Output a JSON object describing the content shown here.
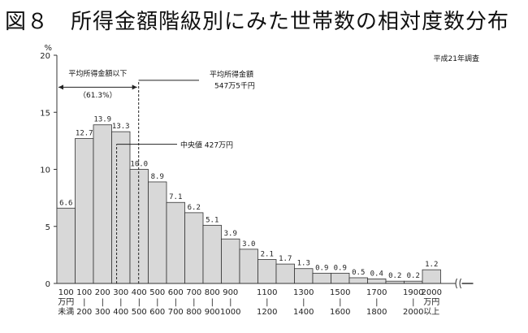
{
  "title": "図８　所得金額階級別にみた世帯数の相対度数分布",
  "chart_data": {
    "type": "bar",
    "ylabel": "%",
    "ylim": [
      0,
      20
    ],
    "yticks": [
      0,
      5,
      10,
      15,
      20
    ],
    "note": "平成21年調査",
    "categories": [
      [
        "100",
        "万円",
        "未満"
      ],
      [
        "100",
        "|",
        "200"
      ],
      [
        "200",
        "|",
        "300"
      ],
      [
        "300",
        "|",
        "400"
      ],
      [
        "400",
        "|",
        "500"
      ],
      [
        "500",
        "|",
        "600"
      ],
      [
        "600",
        "|",
        "700"
      ],
      [
        "700",
        "|",
        "800"
      ],
      [
        "800",
        "|",
        "900"
      ],
      [
        "900",
        "|",
        "1000"
      ],
      [
        "",
        "",
        ""
      ],
      [
        "1100",
        "|",
        "1200"
      ],
      [
        "",
        "",
        ""
      ],
      [
        "1300",
        "|",
        "1400"
      ],
      [
        "",
        "",
        ""
      ],
      [
        "1500",
        "|",
        "1600"
      ],
      [
        "",
        "",
        ""
      ],
      [
        "1700",
        "|",
        "1800"
      ],
      [
        "",
        "",
        ""
      ],
      [
        "1900",
        "|",
        "2000"
      ],
      [
        "2000",
        "万円",
        "以上"
      ]
    ],
    "values": [
      6.6,
      12.7,
      13.9,
      13.3,
      10.0,
      8.9,
      7.1,
      6.2,
      5.1,
      3.9,
      3.0,
      2.1,
      1.7,
      1.3,
      0.9,
      0.9,
      0.5,
      0.4,
      0.2,
      0.2,
      1.2
    ],
    "value_labels": [
      "6.6",
      "12.7",
      "13.9",
      "13.3",
      "10.0",
      "8.9",
      "7.1",
      "6.2",
      "5.1",
      "3.9",
      "3.0",
      "2.1",
      "1.7",
      "1.3",
      "0.9",
      "0.9",
      "0.5",
      "0.4",
      "0.2",
      "0.2",
      "1.2"
    ],
    "annotations": {
      "below_mean": [
        "平均所得金額以下",
        "（61.3%）"
      ],
      "mean": [
        "平均所得金額",
        "547万5千円"
      ],
      "median": "中央値 427万円"
    },
    "markers": {
      "median": 427,
      "mean": 547.5,
      "bin_width": 100
    }
  }
}
